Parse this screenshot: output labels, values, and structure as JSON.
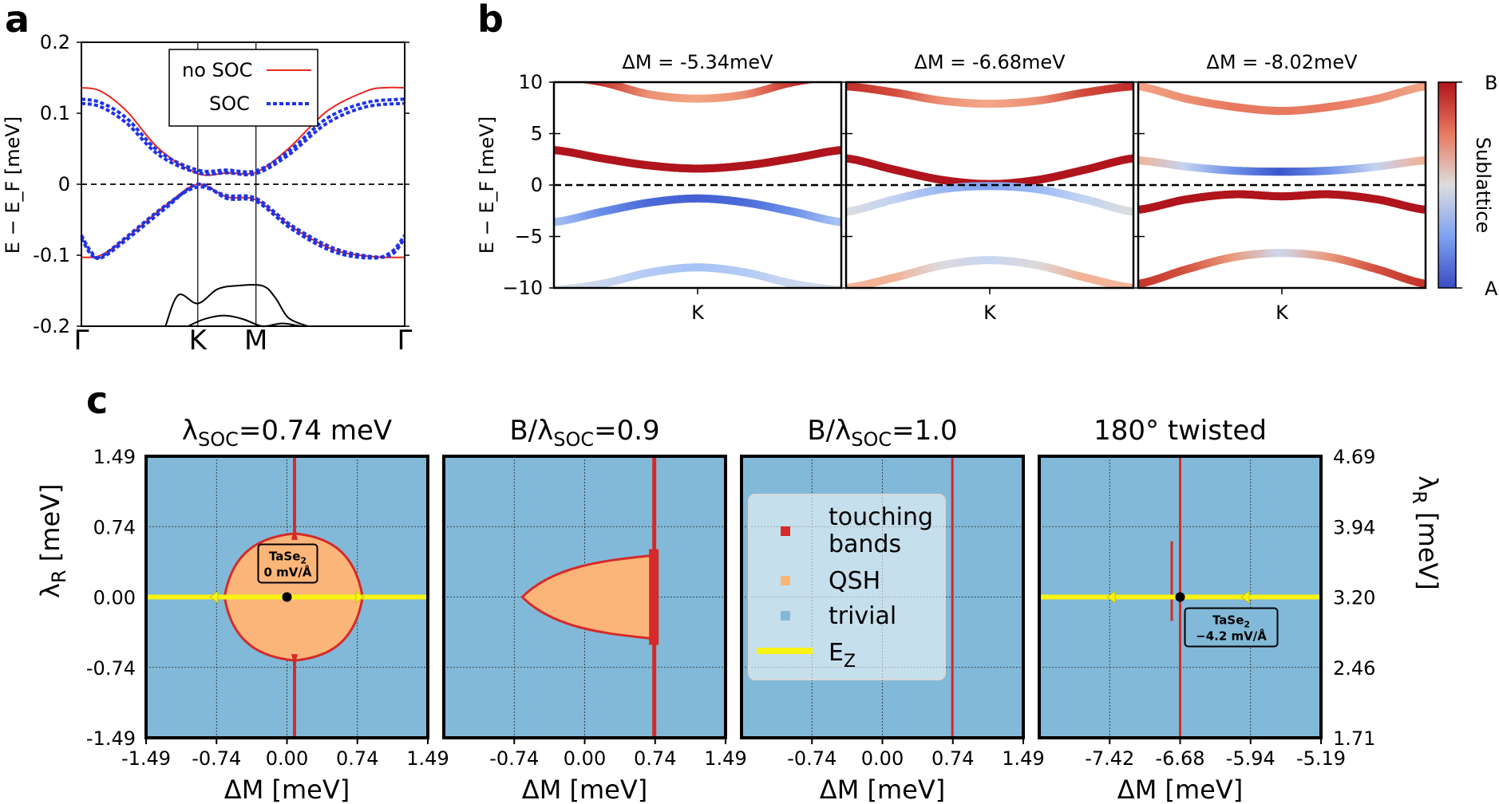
{
  "figure": {
    "panel_labels": [
      "a",
      "b",
      "c"
    ]
  },
  "chart_data": [
    {
      "id": "a",
      "type": "line",
      "title": "",
      "xlabel": "",
      "ylabel": "E − E_F [meV]",
      "xticks": [
        "Γ",
        "K",
        "M",
        "Γ"
      ],
      "xtick_positions": [
        0,
        0.36,
        0.54,
        1
      ],
      "yticks": [
        "0.2",
        "0.1",
        "0",
        "-0.1",
        "-0.2"
      ],
      "ytick_values": [
        0.2,
        0.1,
        0,
        -0.1,
        -0.2
      ],
      "ylim": [
        -0.2,
        0.2
      ],
      "fermi_level": 0,
      "legend": [
        "no SOC",
        "SOC"
      ],
      "series": [
        {
          "name": "no SOC",
          "color": "#e8281e",
          "style": "solid",
          "x": [
            0,
            0.06,
            0.14,
            0.24,
            0.36,
            0.45,
            0.54,
            0.64,
            0.76,
            0.88,
            0.94,
            1
          ],
          "y": [
            0.136,
            0.131,
            0.103,
            0.05,
            0.015,
            0.016,
            0.017,
            0.05,
            0.103,
            0.131,
            0.136,
            0.136
          ]
        },
        {
          "name": "no SOC",
          "color": "#e8281e",
          "style": "solid",
          "x": [
            0,
            0.06,
            0.14,
            0.26,
            0.36,
            0.45,
            0.54,
            0.65,
            0.78,
            0.9,
            1
          ],
          "y": [
            -0.103,
            -0.1,
            -0.075,
            -0.03,
            0.0,
            -0.018,
            -0.022,
            -0.06,
            -0.092,
            -0.102,
            -0.103
          ]
        },
        {
          "name": "SOC",
          "color": "#1f33e6",
          "style": "dotted",
          "x": [
            0,
            0.06,
            0.14,
            0.24,
            0.36,
            0.45,
            0.54,
            0.64,
            0.76,
            0.88,
            1
          ],
          "y": [
            0.12,
            0.115,
            0.093,
            0.046,
            0.02,
            0.02,
            0.019,
            0.046,
            0.093,
            0.115,
            0.12
          ]
        },
        {
          "name": "SOC",
          "color": "#1f33e6",
          "style": "dotted",
          "x": [
            0,
            0.06,
            0.14,
            0.24,
            0.36,
            0.45,
            0.54,
            0.64,
            0.76,
            0.88,
            1
          ],
          "y": [
            0.114,
            0.109,
            0.086,
            0.041,
            0.016,
            0.016,
            0.015,
            0.041,
            0.086,
            0.109,
            0.114
          ]
        },
        {
          "name": "SOC",
          "color": "#1f33e6",
          "style": "dotted",
          "x": [
            0,
            0.03,
            0.06,
            0.14,
            0.26,
            0.36,
            0.45,
            0.54,
            0.65,
            0.78,
            0.9,
            0.96,
            1
          ],
          "y": [
            -0.072,
            -0.095,
            -0.104,
            -0.078,
            -0.034,
            0.0,
            -0.02,
            -0.024,
            -0.063,
            -0.095,
            -0.104,
            -0.095,
            -0.072
          ]
        },
        {
          "name": "SOC",
          "color": "#1f33e6",
          "style": "dotted",
          "x": [
            0,
            0.03,
            0.06,
            0.14,
            0.26,
            0.36,
            0.45,
            0.54,
            0.65,
            0.78,
            0.9,
            0.96,
            1
          ],
          "y": [
            -0.076,
            -0.099,
            -0.102,
            -0.074,
            -0.03,
            -0.004,
            -0.016,
            -0.02,
            -0.058,
            -0.09,
            -0.102,
            -0.099,
            -0.076
          ]
        },
        {
          "name": "",
          "color": "#000000",
          "style": "solid",
          "x": [
            0.26,
            0.3,
            0.36,
            0.42,
            0.48,
            0.56,
            0.6,
            0.64,
            0.7
          ],
          "y": [
            -0.2,
            -0.156,
            -0.168,
            -0.148,
            -0.143,
            -0.143,
            -0.16,
            -0.188,
            -0.2
          ]
        },
        {
          "name": "",
          "color": "#000000",
          "style": "solid",
          "x": [
            0.33,
            0.38,
            0.44,
            0.5,
            0.56,
            0.62,
            0.68
          ],
          "y": [
            -0.2,
            -0.19,
            -0.185,
            -0.19,
            -0.2,
            -0.196,
            -0.2
          ]
        }
      ]
    },
    {
      "id": "b",
      "type": "line",
      "ylabel": "E − E_F [meV]",
      "yticks": [
        "10",
        "5",
        "0",
        "−5",
        "−10"
      ],
      "ytick_values": [
        10,
        5,
        0,
        -5,
        -10
      ],
      "ylim": [
        -10,
        10
      ],
      "xtick": "K",
      "colorbar": {
        "label": "Sublattice",
        "top": "B",
        "bottom": "A"
      },
      "subplots": [
        {
          "title": "ΔM = -5.34meV",
          "bands": [
            {
              "y": [
                10.6,
                10,
                8.8,
                8.4,
                8.8,
                10,
                10.6
              ],
              "color": [
                "#b0141c",
                "#c7342e",
                "#ec8f73",
                "#f2a585",
                "#ec8f73",
                "#c7342e",
                "#b0141c"
              ]
            },
            {
              "y": [
                3.4,
                2.6,
                1.9,
                1.6,
                1.9,
                2.6,
                3.4
              ],
              "color": [
                "#b0141c",
                "#b0141c",
                "#b0141c",
                "#b0141c",
                "#b0141c",
                "#b0141c",
                "#b0141c"
              ]
            },
            {
              "y": [
                -3.6,
                -2.6,
                -1.7,
                -1.3,
                -1.7,
                -2.6,
                -3.6
              ],
              "color": [
                "#a9c4f5",
                "#6b8fe8",
                "#4a6ad8",
                "#4560d4",
                "#4a6ad8",
                "#6b8fe8",
                "#a9c4f5"
              ]
            },
            {
              "y": [
                -10.2,
                -9.6,
                -8.5,
                -8.0,
                -8.5,
                -9.6,
                -10.2
              ],
              "color": [
                "#dadde6",
                "#cbd6ef",
                "#b3cbf5",
                "#a6c2f6",
                "#b3cbf5",
                "#cbd6ef",
                "#dadde6"
              ]
            }
          ]
        },
        {
          "title": "ΔM = -6.68meV",
          "bands": [
            {
              "y": [
                9.6,
                9.0,
                8.2,
                7.9,
                8.2,
                9.0,
                9.6
              ],
              "color": [
                "#c02d2a",
                "#d24a3c",
                "#ec8f73",
                "#f4a68a",
                "#ec8f73",
                "#d24a3c",
                "#c02d2a"
              ]
            },
            {
              "y": [
                2.6,
                1.5,
                0.5,
                0.1,
                0.5,
                1.5,
                2.6
              ],
              "color": [
                "#b0141c",
                "#b0141c",
                "#b0141c",
                "#b0141c",
                "#b0141c",
                "#b0141c",
                "#b0141c"
              ]
            },
            {
              "y": [
                -2.6,
                -1.4,
                -0.4,
                -0.1,
                -0.4,
                -1.4,
                -2.6
              ],
              "color": [
                "#dcdcdc",
                "#c3d3f3",
                "#9ab8f5",
                "#7fa2f1",
                "#9ab8f5",
                "#c3d3f3",
                "#dcdcdc"
              ]
            },
            {
              "y": [
                -10.0,
                -9.0,
                -7.8,
                -7.3,
                -7.8,
                -9.0,
                -10.0
              ],
              "color": [
                "#f4b89c",
                "#f2b194",
                "#ddd9dc",
                "#c7d6f2",
                "#ddd9dc",
                "#f2b194",
                "#f4b89c"
              ]
            }
          ]
        },
        {
          "title": "ΔM = -8.02meV",
          "bands": [
            {
              "y": [
                9.6,
                8.4,
                7.6,
                7.2,
                7.6,
                8.4,
                9.6
              ],
              "color": [
                "#f2a486",
                "#ec8f73",
                "#e8795f",
                "#e67a60",
                "#e8795f",
                "#ec8f73",
                "#f2a486"
              ]
            },
            {
              "y": [
                2.4,
                1.8,
                1.4,
                1.3,
                1.4,
                1.8,
                2.4
              ],
              "color": [
                "#f2b194",
                "#c5d3ef",
                "#6f92e9",
                "#3b55cc",
                "#6f92e9",
                "#c5d3ef",
                "#f2b194"
              ]
            },
            {
              "y": [
                -2.4,
                -1.4,
                -0.9,
                -1.1,
                -0.9,
                -1.4,
                -2.4
              ],
              "color": [
                "#b0141c",
                "#b0141c",
                "#b0141c",
                "#b0141c",
                "#b0141c",
                "#b0141c",
                "#b0141c"
              ]
            },
            {
              "y": [
                -9.6,
                -8.2,
                -7.0,
                -6.6,
                -7.0,
                -8.2,
                -9.6
              ],
              "color": [
                "#c43428",
                "#d2503f",
                "#ea9a7c",
                "#cdd8f0",
                "#ea9a7c",
                "#d2503f",
                "#c43428"
              ]
            }
          ]
        }
      ]
    },
    {
      "id": "c",
      "type": "heatmap",
      "ylabel": "λR [meV]",
      "ylabel_right": "λR [meV]",
      "yticks_left": [
        "1.49",
        "0.74",
        "0.00",
        "-0.74",
        "-1.49"
      ],
      "yticks_right": [
        "4.69",
        "3.94",
        "3.20",
        "2.46",
        "1.71"
      ],
      "xlabel": "ΔM [meV]",
      "colors": {
        "trivial": "#82b9d8",
        "QSH": "#fcb579",
        "touching": "#d62a28",
        "Ez": "#f8f312"
      },
      "legend": [
        {
          "label": "touching",
          "label2": "bands",
          "kind": "touching"
        },
        {
          "label": "QSH",
          "kind": "QSH"
        },
        {
          "label": "trivial",
          "kind": "trivial"
        },
        {
          "label": "E",
          "sub": "Z",
          "kind": "Ez"
        }
      ],
      "subplots": [
        {
          "title_pre": "λ",
          "title_sub": "SOC",
          "title_post": "=0.74 meV",
          "xticks": [
            "-1.49",
            "-0.74",
            "0.00",
            "0.74",
            "1.49"
          ],
          "xlim": [
            -1.49,
            1.49
          ],
          "region": "lens",
          "qsh_x": [
            -0.66,
            0.8
          ],
          "touch_line_x": 0.08,
          "marker": {
            "x": 0.0,
            "y": 0.0
          },
          "annotation": {
            "line1": "TaSe",
            "sub": "2",
            "line2": "0 mV/Å"
          }
        },
        {
          "title_pre": "B/λ",
          "title_sub": "SOC",
          "title_post": "=0.9",
          "xticks": [
            "-0.74",
            "0.00",
            "0.74",
            "1.49"
          ],
          "xlim": [
            -1.49,
            1.49
          ],
          "region": "wedge",
          "qsh_x": [
            -0.66,
            0.8
          ],
          "touch_line_x": 0.74
        },
        {
          "title_pre": "B/λ",
          "title_sub": "SOC",
          "title_post": "=1.0",
          "xticks": [
            "-0.74",
            "0.00",
            "0.74",
            "1.49"
          ],
          "xlim": [
            -1.49,
            1.49
          ],
          "region": "none",
          "touch_line_x": 0.74
        },
        {
          "title_pre": "",
          "title_sub": "",
          "title_post": "180° twisted",
          "xticks": [
            "-7.42",
            "-6.68",
            "-5.94",
            "-5.19"
          ],
          "xlim": [
            -8.17,
            -5.19
          ],
          "region": "none",
          "touch_line_x": -6.68,
          "marker": {
            "x": -6.68,
            "y": 0.0
          },
          "annotation": {
            "line1": "TaSe",
            "sub": "2",
            "line2": "−4.2 mV/Å"
          }
        }
      ]
    }
  ]
}
